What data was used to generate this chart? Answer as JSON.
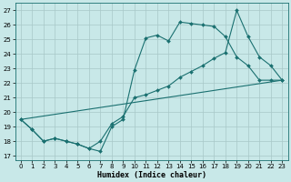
{
  "xlabel": "Humidex (Indice chaleur)",
  "background_color": "#c8e8e8",
  "grid_color": "#a8c8c8",
  "line_color": "#1a7070",
  "xlim": [
    -0.5,
    23.5
  ],
  "ylim": [
    16.7,
    27.5
  ],
  "yticks": [
    17,
    18,
    19,
    20,
    21,
    22,
    23,
    24,
    25,
    26,
    27
  ],
  "xticks": [
    0,
    1,
    2,
    3,
    4,
    5,
    6,
    7,
    8,
    9,
    10,
    11,
    12,
    13,
    14,
    15,
    16,
    17,
    18,
    19,
    20,
    21,
    22,
    23
  ],
  "line1_x": [
    0,
    1,
    2,
    3,
    4,
    5,
    6,
    7,
    8,
    9,
    10,
    11,
    12,
    13,
    14,
    15,
    16,
    17,
    18,
    19,
    20,
    21,
    22,
    23
  ],
  "line1_y": [
    19.5,
    18.8,
    18.0,
    18.2,
    18.0,
    17.8,
    17.5,
    17.3,
    19.0,
    19.5,
    22.9,
    25.1,
    25.3,
    24.9,
    26.2,
    26.1,
    26.0,
    25.9,
    25.2,
    23.8,
    23.2,
    22.2,
    22.2,
    22.2
  ],
  "line2_x": [
    0,
    1,
    2,
    3,
    4,
    5,
    6,
    7,
    8,
    9,
    10,
    11,
    12,
    13,
    14,
    15,
    16,
    17,
    18,
    19,
    20,
    21,
    22,
    23
  ],
  "line2_y": [
    19.5,
    18.8,
    18.0,
    18.2,
    18.0,
    17.8,
    17.5,
    18.0,
    19.2,
    19.7,
    21.0,
    21.2,
    21.5,
    21.8,
    22.4,
    22.8,
    23.2,
    23.7,
    24.1,
    27.0,
    25.2,
    23.8,
    23.2,
    22.2
  ],
  "line3_x": [
    0,
    23
  ],
  "line3_y": [
    19.5,
    22.2
  ]
}
